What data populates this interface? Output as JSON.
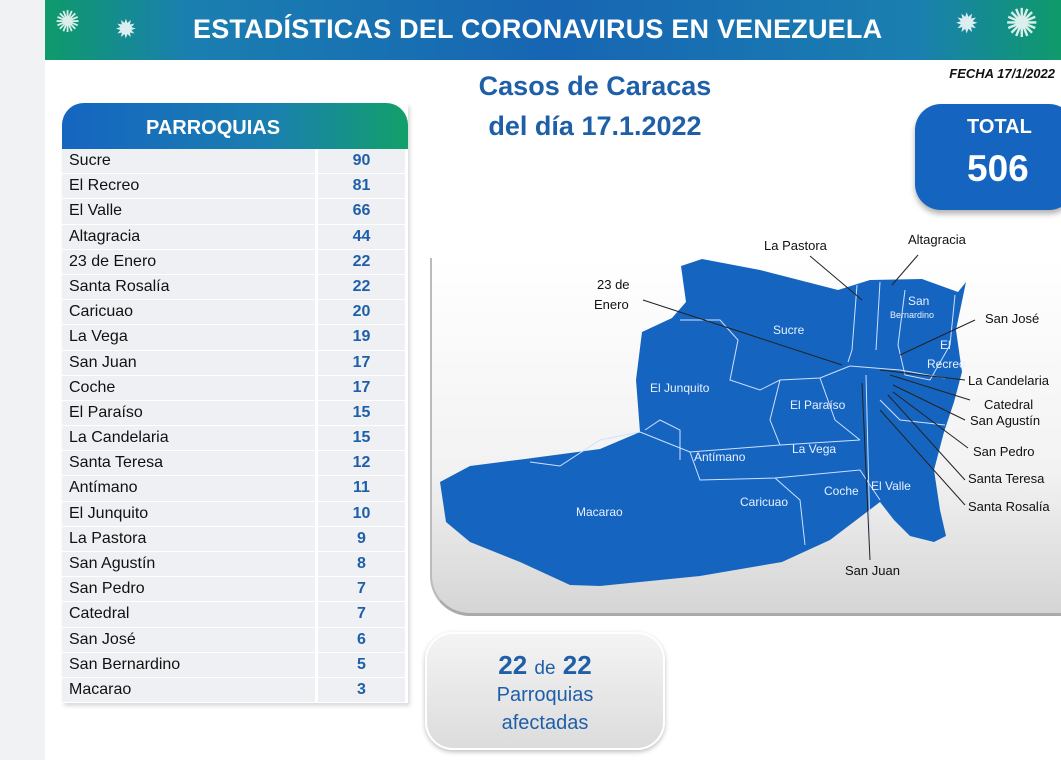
{
  "header": {
    "title": "ESTADÍSTICAS DEL CORONAVIRUS EN VENEZUELA",
    "date": "FECHA 17/1/2022"
  },
  "subtitle": {
    "line1": "Casos de Caracas",
    "line2": "del día 17.1.2022"
  },
  "total": {
    "label": "TOTAL",
    "value": "506"
  },
  "table": {
    "header": "PARROQUIAS",
    "rows": [
      {
        "name": "Sucre",
        "cases": "90"
      },
      {
        "name": "El Recreo",
        "cases": "81"
      },
      {
        "name": "El Valle",
        "cases": "66"
      },
      {
        "name": "Altagracia",
        "cases": "44"
      },
      {
        "name": "23 de Enero",
        "cases": "22"
      },
      {
        "name": "Santa Rosalía",
        "cases": "22"
      },
      {
        "name": "Caricuao",
        "cases": "20"
      },
      {
        "name": "La Vega",
        "cases": "19"
      },
      {
        "name": "San Juan",
        "cases": "17"
      },
      {
        "name": "Coche",
        "cases": "17"
      },
      {
        "name": "El Paraíso",
        "cases": "15"
      },
      {
        "name": "La Candelaria",
        "cases": "15"
      },
      {
        "name": "Santa Teresa",
        "cases": "12"
      },
      {
        "name": "Antímano",
        "cases": "11"
      },
      {
        "name": "El Junquito",
        "cases": "10"
      },
      {
        "name": "La Pastora",
        "cases": "9"
      },
      {
        "name": "San Agustín",
        "cases": "8"
      },
      {
        "name": "San Pedro",
        "cases": "7"
      },
      {
        "name": "Catedral",
        "cases": "7"
      },
      {
        "name": "San José",
        "cases": "6"
      },
      {
        "name": "San Bernardino",
        "cases": "5"
      },
      {
        "name": "Macarao",
        "cases": "3"
      }
    ]
  },
  "map": {
    "fill": "#1565c0",
    "outside_labels": [
      "La Pastora",
      "Altagracia",
      "23 de",
      "Enero",
      "San José",
      "La Candelaria",
      "Catedral",
      "San Agustín",
      "San Pedro",
      "Santa Teresa",
      "Santa Rosalía",
      "San Juan"
    ],
    "inside_labels": [
      "Sucre",
      "San",
      "Bernardino",
      "El",
      "Recreo",
      "El Junquito",
      "El Paraíso",
      "Antímano",
      "La Vega",
      "Caricuao",
      "Coche",
      "El Valle",
      "Macarao"
    ]
  },
  "badge": {
    "count": "22",
    "of": "de",
    "total": "22",
    "line1": "Parroquias",
    "line2": "afectadas"
  }
}
